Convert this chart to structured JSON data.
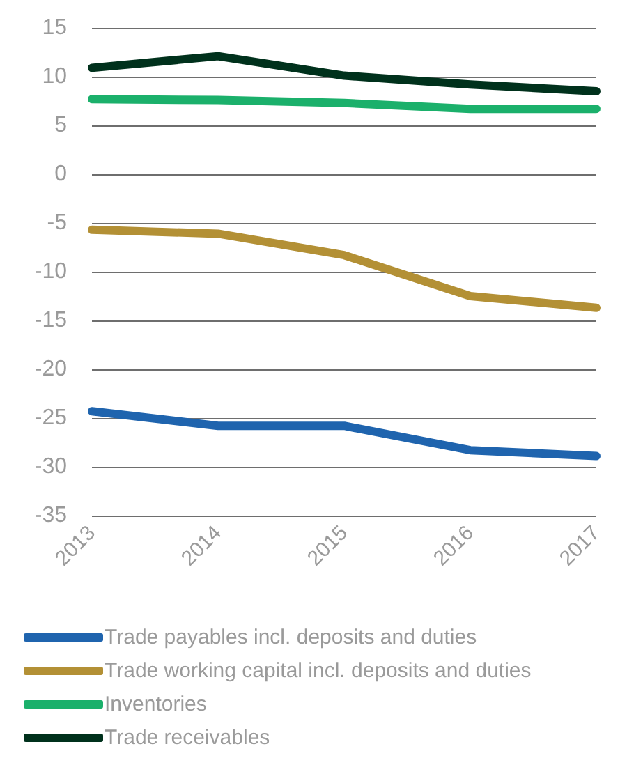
{
  "chart_data": {
    "type": "line",
    "categories": [
      "2013",
      "2014",
      "2015",
      "2016",
      "2017"
    ],
    "series": [
      {
        "name": "Trade payables incl. deposits and duties",
        "color": "#1f64ae",
        "values": [
          -24.3,
          -25.8,
          -25.8,
          -28.3,
          -28.9
        ]
      },
      {
        "name": "Trade working capital incl. deposits and duties",
        "color": "#b39035",
        "values": [
          -5.7,
          -6.1,
          -8.3,
          -12.5,
          -13.7
        ]
      },
      {
        "name": "Inventories",
        "color": "#1bb06b",
        "values": [
          7.7,
          7.6,
          7.3,
          6.7,
          6.7
        ]
      },
      {
        "name": "Trade receivables",
        "color": "#00311c",
        "values": [
          10.9,
          12.1,
          10.1,
          9.2,
          8.5
        ]
      }
    ],
    "ylim": [
      -35,
      15
    ],
    "yticks": [
      -35,
      -30,
      -25,
      -20,
      -15,
      -10,
      -5,
      0,
      5,
      10,
      15
    ],
    "grid": "y",
    "legend": "bottom"
  }
}
